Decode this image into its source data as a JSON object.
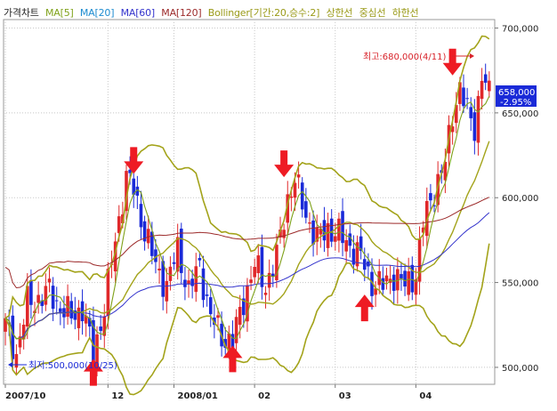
{
  "legend": {
    "price_chart": "가격차트",
    "ma5": "MA[5]",
    "ma20": "MA[20]",
    "ma60": "MA[60]",
    "ma120": "MA[120]",
    "bollinger": "Bollinger[기간:20,승수:2]",
    "upper": "상한선",
    "middle": "중심선",
    "lower": "하한선"
  },
  "colors": {
    "ma5": "#7fa21a",
    "ma20": "#1e6fd0",
    "ma60": "#3333cc",
    "ma120": "#9c2a2a",
    "bollinger": "#a3a31a",
    "up": "#e0282a",
    "down": "#1a2ad8",
    "arrow": "#ee1b24",
    "price_box": "#1a2ad8",
    "annotation": "#d8232a"
  },
  "annotations": {
    "high": "최고:680,000(4/11)",
    "low": "최저:500,000(10/25)"
  },
  "current_price": {
    "value": "658,000",
    "change": "-2.95%"
  },
  "chart_data": {
    "type": "candlestick",
    "x_ticks": [
      "2007/10",
      "12",
      "2008/01",
      "02",
      "03",
      "04"
    ],
    "y_ticks": [
      500000,
      550000,
      600000,
      650000,
      700000
    ],
    "y_tick_labels": [
      "500,000",
      "550,000",
      "600,000",
      "650,000",
      "700,000"
    ],
    "ylim": [
      490000,
      705000
    ],
    "grid": true,
    "high_point": 680000,
    "low_point": 500000,
    "last_close": 658000,
    "change_pct": -2.95,
    "close_anchors": [
      [
        0,
        525000
      ],
      [
        3,
        508000
      ],
      [
        6,
        538000
      ],
      [
        9,
        540000
      ],
      [
        12,
        545000
      ],
      [
        15,
        535000
      ],
      [
        18,
        530000
      ],
      [
        21,
        535000
      ],
      [
        24,
        508000
      ],
      [
        27,
        535000
      ],
      [
        30,
        575000
      ],
      [
        33,
        612000
      ],
      [
        35,
        605000
      ],
      [
        38,
        580000
      ],
      [
        41,
        560000
      ],
      [
        44,
        548000
      ],
      [
        47,
        570000
      ],
      [
        50,
        545000
      ],
      [
        53,
        560000
      ],
      [
        56,
        530000
      ],
      [
        59,
        518000
      ],
      [
        62,
        515000
      ],
      [
        65,
        540000
      ],
      [
        68,
        560000
      ],
      [
        71,
        548000
      ],
      [
        74,
        565000
      ],
      [
        77,
        600000
      ],
      [
        79,
        610000
      ],
      [
        82,
        590000
      ],
      [
        85,
        575000
      ],
      [
        88,
        582000
      ],
      [
        91,
        578000
      ],
      [
        94,
        572000
      ],
      [
        97,
        565000
      ],
      [
        100,
        550000
      ],
      [
        103,
        548000
      ],
      [
        106,
        555000
      ],
      [
        109,
        548000
      ],
      [
        112,
        555000
      ],
      [
        114,
        585000
      ],
      [
        117,
        605000
      ],
      [
        120,
        620000
      ],
      [
        122,
        650000
      ],
      [
        124,
        665000
      ],
      [
        126,
        650000
      ],
      [
        128,
        642000
      ],
      [
        130,
        672000
      ],
      [
        132,
        660000
      ]
    ],
    "arrows": [
      {
        "index": 24,
        "price": 507000,
        "direction": "up"
      },
      {
        "index": 35,
        "price": 612000,
        "direction": "down"
      },
      {
        "index": 62,
        "price": 515000,
        "direction": "up"
      },
      {
        "index": 76,
        "price": 610000,
        "direction": "down"
      },
      {
        "index": 98,
        "price": 545000,
        "direction": "up"
      },
      {
        "index": 122,
        "price": 670000,
        "direction": "down"
      }
    ]
  }
}
